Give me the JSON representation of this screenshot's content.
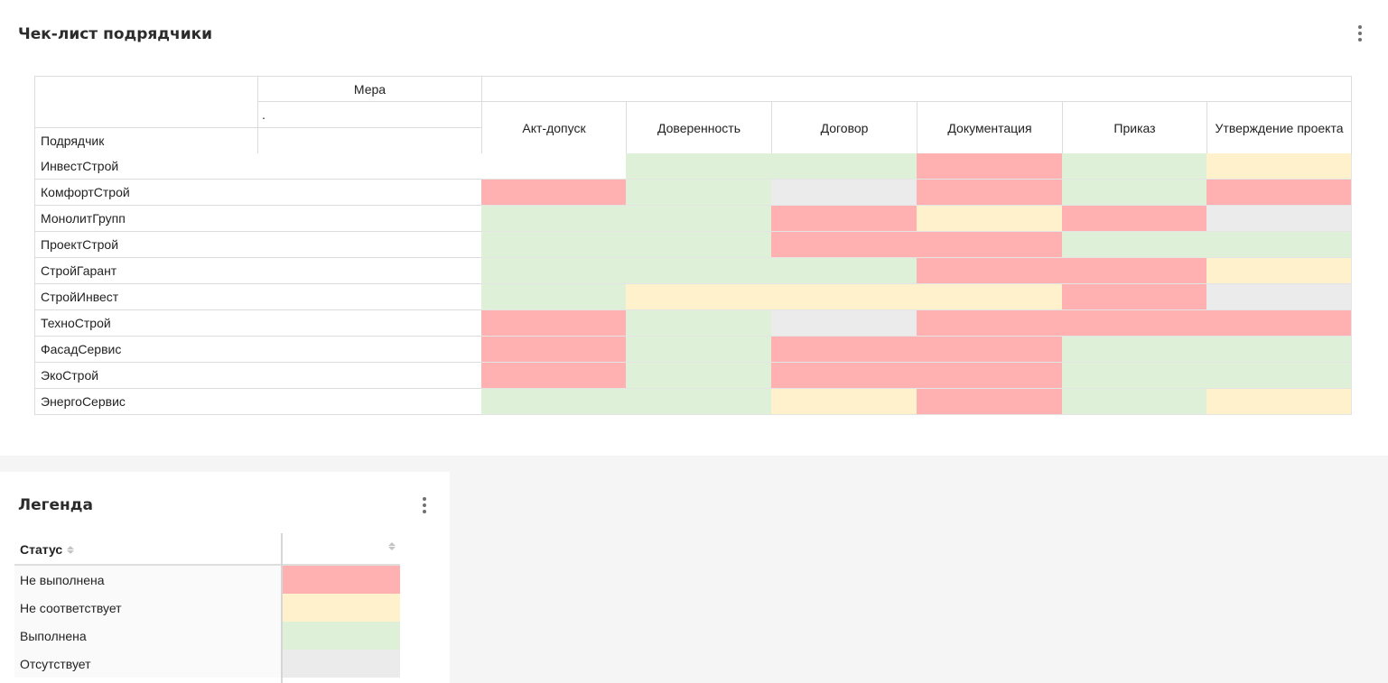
{
  "main_panel": {
    "title": "Чек-лист подрядчики",
    "menu_icon": "kebab-menu-icon"
  },
  "pivot": {
    "measure_header": "Мера",
    "measure_sub": ".",
    "row_header": "Подрядчик",
    "columns": [
      "Акт-допуск",
      "Доверенность",
      "Договор",
      "Документация",
      "Приказ",
      "Утверждение проекта"
    ],
    "rows": [
      {
        "name": "ИнвестСтрой",
        "status": [
          "empty",
          "done",
          "done",
          "not_done",
          "done",
          "mismatch"
        ]
      },
      {
        "name": "КомфортСтрой",
        "status": [
          "not_done",
          "done",
          "absent",
          "not_done",
          "done",
          "not_done"
        ]
      },
      {
        "name": "МонолитГрупп",
        "status": [
          "done",
          "done",
          "not_done",
          "mismatch",
          "not_done",
          "absent"
        ]
      },
      {
        "name": "ПроектСтрой",
        "status": [
          "done",
          "done",
          "not_done",
          "not_done",
          "done",
          "done"
        ]
      },
      {
        "name": "СтройГарант",
        "status": [
          "done",
          "done",
          "done",
          "not_done",
          "not_done",
          "mismatch"
        ]
      },
      {
        "name": "СтройИнвест",
        "status": [
          "done",
          "mismatch",
          "mismatch",
          "mismatch",
          "not_done",
          "absent"
        ]
      },
      {
        "name": "ТехноСтрой",
        "status": [
          "not_done",
          "done",
          "absent",
          "not_done",
          "not_done",
          "not_done"
        ]
      },
      {
        "name": "ФасадСервис",
        "status": [
          "not_done",
          "done",
          "not_done",
          "not_done",
          "done",
          "done"
        ]
      },
      {
        "name": "ЭкоСтрой",
        "status": [
          "not_done",
          "done",
          "not_done",
          "not_done",
          "done",
          "done"
        ]
      },
      {
        "name": "ЭнергоСервис",
        "status": [
          "done",
          "done",
          "mismatch",
          "not_done",
          "done",
          "mismatch"
        ]
      }
    ]
  },
  "status_colors": {
    "not_done": "#ffb0b0",
    "mismatch": "#fff1cc",
    "done": "#dff0d8",
    "absent": "#ebebeb",
    "empty": "#ffffff"
  },
  "legend_panel": {
    "title": "Легенда",
    "menu_icon": "kebab-menu-icon",
    "column_status": "Статус",
    "items": [
      {
        "label": "Не выполнена",
        "key": "not_done"
      },
      {
        "label": "Не соответствует",
        "key": "mismatch"
      },
      {
        "label": "Выполнена",
        "key": "done"
      },
      {
        "label": "Отсутствует",
        "key": "absent"
      }
    ]
  }
}
